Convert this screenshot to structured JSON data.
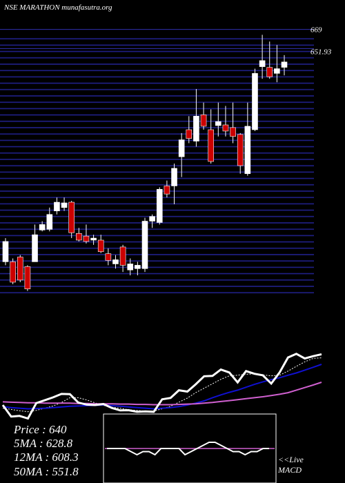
{
  "chart_data": {
    "type": "candlestick",
    "title": "NSE MARATHON munafasutra.org",
    "open": [
      461.9,
      461.9,
      466.1,
      457.6,
      461.9,
      490.2,
      490.8,
      507.2,
      510.2,
      515.0,
      487.2,
      484.8,
      481.2,
      481.2,
      469.1,
      460.0,
      475.1,
      454.6,
      455.8,
      455.8,
      498.1,
      496.9,
      529.5,
      529.5,
      555.5,
      579.6,
      569.4,
      592.9,
      579.6,
      583.3,
      583.9,
      581.5,
      575.4,
      540.4,
      579.6,
      635.8,
      635.2,
      629.8,
      635.2
    ],
    "high": [
      483.0,
      464.9,
      467.9,
      458.8,
      495.1,
      498.1,
      510.2,
      519.2,
      519.2,
      516.2,
      492.1,
      495.1,
      486.0,
      486.0,
      473.9,
      467.9,
      477.0,
      464.9,
      461.9,
      501.1,
      504.1,
      528.3,
      534.3,
      549.4,
      576.6,
      591.7,
      615.9,
      603.8,
      597.8,
      603.8,
      600.8,
      603.8,
      576.6,
      603.8,
      634.0,
      664.2,
      658.2,
      655.1,
      646.1
    ],
    "low": [
      458.8,
      441.9,
      443.7,
      435.9,
      461.9,
      489.0,
      489.0,
      504.1,
      507.2,
      483.0,
      480.0,
      478.2,
      477.0,
      469.7,
      458.8,
      455.8,
      452.8,
      449.8,
      449.8,
      452.8,
      492.1,
      495.1,
      519.2,
      513.2,
      537.4,
      567.6,
      564.5,
      579.6,
      549.4,
      573.6,
      573.6,
      567.6,
      540.4,
      538.6,
      578.4,
      625.0,
      625.0,
      621.9,
      628.0
    ],
    "close": [
      480.0,
      443.7,
      445.6,
      437.7,
      486.0,
      495.1,
      504.1,
      515.0,
      514.4,
      487.8,
      481.2,
      480.0,
      483.0,
      470.9,
      463.1,
      463.7,
      458.8,
      460.0,
      458.8,
      498.1,
      502.3,
      526.5,
      522.3,
      545.2,
      570.6,
      571.8,
      591.7,
      582.7,
      551.3,
      586.9,
      578.4,
      573.6,
      547.6,
      582.7,
      629.8,
      641.2,
      626.8,
      634.0,
      640.0
    ],
    "up_color": "#ffffff",
    "down_color": "#cc0000",
    "ylim": [
      432,
      670
    ],
    "yticks": [
      669,
      651.93
    ],
    "ma_ylim": [
      430,
      680
    ],
    "ma_series": [
      {
        "color": "#ffffff",
        "dashed": true,
        "values": [
          470,
          466,
          462,
          459,
          463,
          470,
          477,
          488,
          503,
          503,
          496,
          487,
          479,
          473,
          470,
          465,
          463,
          461,
          461,
          468,
          476,
          489,
          502,
          519,
          533,
          547,
          561,
          572,
          574,
          577,
          578,
          575,
          572,
          574,
          587,
          602,
          616,
          627,
          628.8
        ]
      },
      {
        "color": "#1010d0",
        "dashed": false,
        "values": [
          475,
          472,
          470,
          468,
          469,
          470,
          472,
          474,
          476,
          477,
          478,
          479,
          480,
          478,
          476,
          474,
          472,
          470,
          468,
          470,
          472,
          475,
          480,
          486,
          493,
          503,
          512,
          520,
          527,
          536,
          545,
          553,
          560,
          566,
          574,
          581,
          590,
          599,
          608.3
        ]
      },
      {
        "color": "#d060d0",
        "dashed": false,
        "values": [
          490,
          489,
          488,
          487,
          487,
          486,
          486,
          486,
          486,
          485,
          485,
          484,
          484,
          484,
          483,
          483,
          482,
          482,
          481,
          481,
          481,
          482,
          483,
          484,
          486,
          488,
          491,
          494,
          497,
          500,
          503,
          506,
          510,
          514,
          519,
          527,
          535,
          543,
          551.8
        ]
      }
    ],
    "price_line_color": "#ffffff",
    "info": [
      "Price  : 640",
      "5MA : 628.8",
      "12MA : 608.3",
      "50MA : 551.8"
    ],
    "macd": {
      "ylim": [
        -10,
        10
      ],
      "signal": 0,
      "signal_color": "#d060d0",
      "values": [
        0,
        0,
        0,
        0,
        -1,
        -2,
        -1,
        -1,
        -2,
        0,
        0,
        0,
        0,
        -2,
        -1,
        0,
        1,
        2,
        2,
        1,
        0,
        -1,
        -1,
        -2,
        -1,
        -1,
        0,
        0
      ]
    },
    "live_label": "<<Live",
    "macd_label": "MACD"
  }
}
